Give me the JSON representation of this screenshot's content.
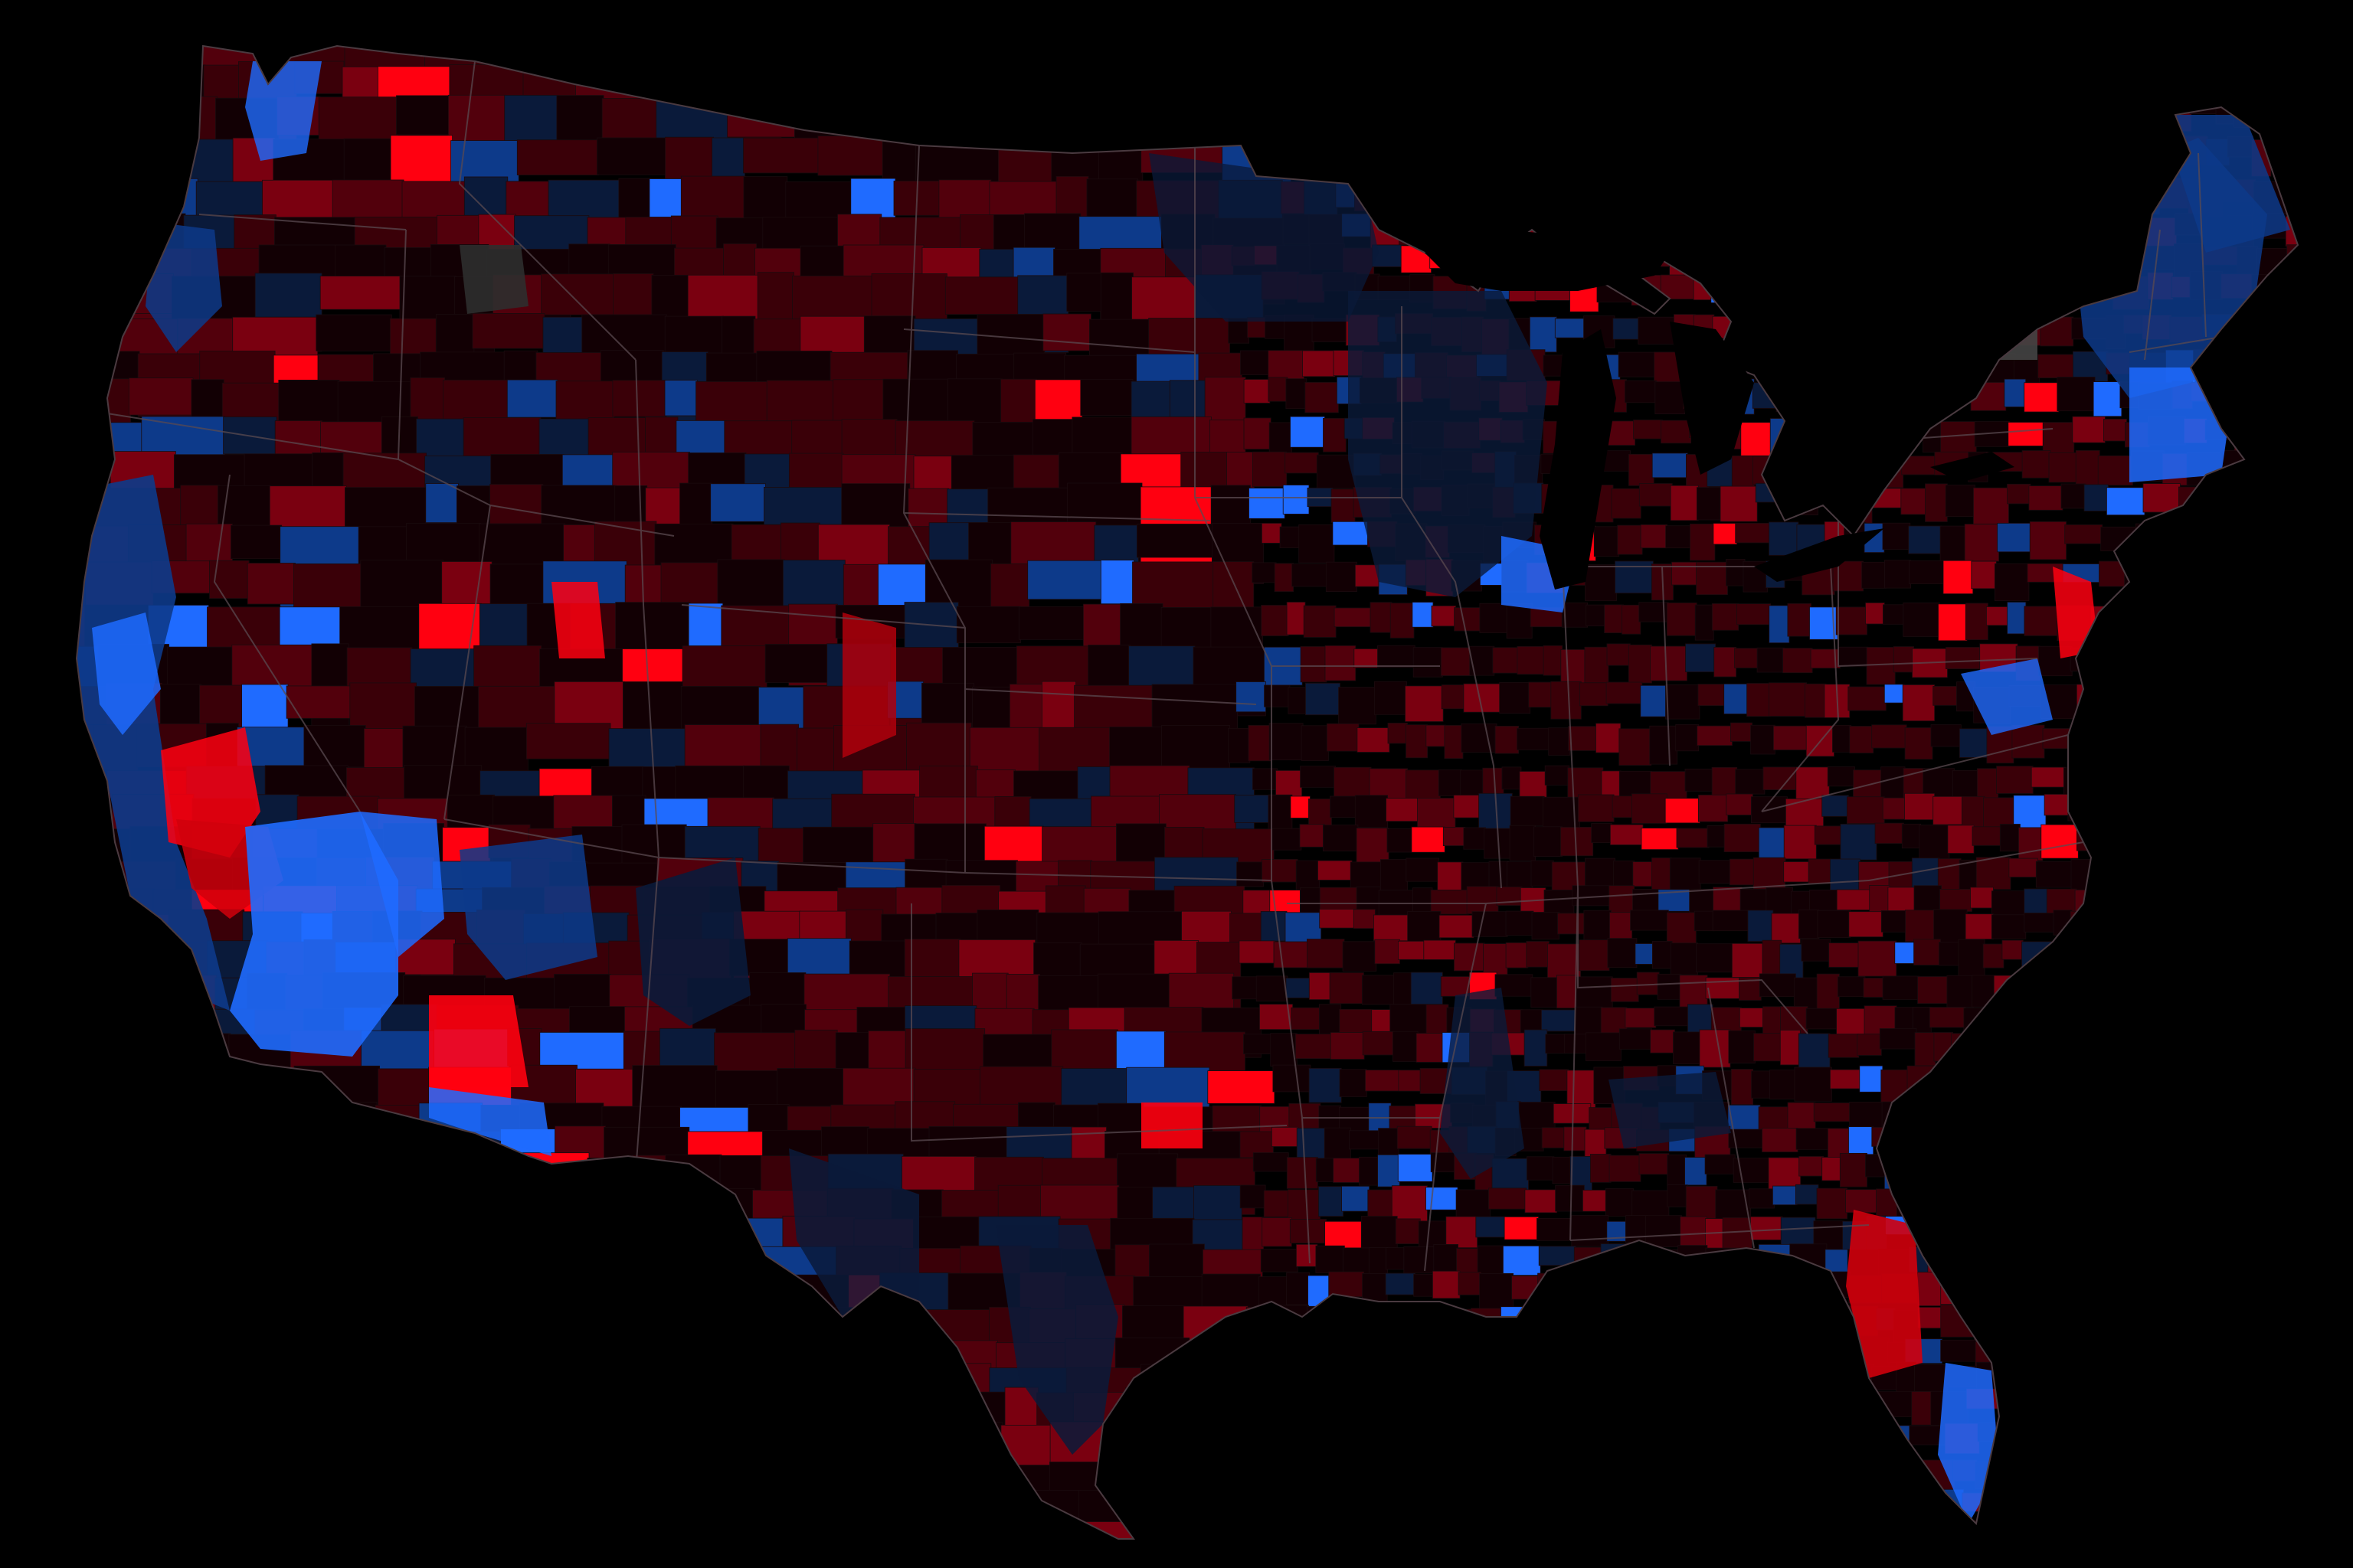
{
  "map": {
    "type": "county-choropleth",
    "region": "contiguous-united-states",
    "background_color": "#000000",
    "border_color": "#5a4a50",
    "palette": {
      "strong_blue": "#1f6bff",
      "medium_blue": "#0d3a8a",
      "dark_blue": "#0a1a3a",
      "darkest": "#120004",
      "dark_red": "#3a0008",
      "medium_red": "#7a0010",
      "strong_red": "#ff0010",
      "no_data_gray": "#2e2e2e"
    }
  }
}
